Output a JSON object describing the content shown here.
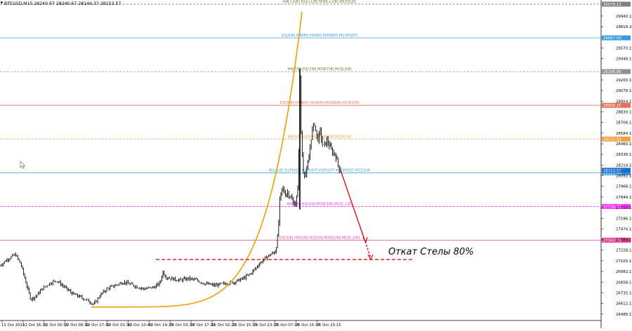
{
  "header": {
    "symbol_line": "BTCUSD,M15  28240.67 28240.67 28146.37 28153.57"
  },
  "annotation": {
    "text": "Откат Стелы 80%"
  },
  "colors": {
    "background": "#ffffff",
    "candles": "#000000",
    "grid": "#d9d9d9",
    "curve": "#f2a000",
    "arrow": "#e01010",
    "dashed_target": "#e01010",
    "current_price_tag": "#1a6fd0"
  },
  "chart_data": {
    "type": "candlestick",
    "instrument": "BTCUSD",
    "timeframe": "M15",
    "ohlc_last": {
      "open": 28240.67,
      "high": 28240.67,
      "low": 28146.37,
      "close": 28153.57
    },
    "x_tick_labels": [
      "11 Oct 2023",
      "11 Oct 16:15",
      "12 Oct 00:15",
      "12 Oct 08:30",
      "12 Oct 17:30",
      "13 Oct 01:30",
      "13 Oct 10:45",
      "13 Oct 19:15",
      "14 Oct 03:15",
      "14 Oct 17:30",
      "15 Oct 02:15",
      "15 Oct 15:15",
      "15 Oct 23:15",
      "16 Oct 07:15",
      "16 Oct 15:15",
      "16 Oct 23:15"
    ],
    "y_tick_labels": [
      "29940.15",
      "29816.20",
      "29570.15",
      "29448.15",
      "29200.15",
      "29078.15",
      "28954.15",
      "28830.15",
      "28708.15",
      "28584.15",
      "28460.15",
      "28338.15",
      "28214.15",
      "28092.15",
      "27968.15",
      "27844.15",
      "27720.15",
      "27596.15",
      "27474.15",
      "27350.15",
      "27228.15",
      "27105.15",
      "26982.15",
      "26858.15",
      "26735.15",
      "26612.15",
      "26488.15"
    ],
    "ylim": [
      26430,
      30110
    ],
    "levels": [
      {
        "label": "H4[+1/8] H1[+1/8] M30[+1/8] M15[5/8]",
        "price": 30078.13,
        "price_label": "30078.13",
        "color": "#808080",
        "style": "dashed",
        "text_color": "#6b7a2a"
      },
      {
        "label": "D1[6/8] H4RES H1RES M30RES M15PIVOT",
        "price": 29687.5,
        "price_label": "29687.50",
        "color": "#3c9be0",
        "style": "solid",
        "text_color": "#3c9be0"
      },
      {
        "label": "H4[7/8] H1[7/8] M30[7/8] M15[3/8]",
        "price": 29296.88,
        "price_label": "29296.88",
        "color": "#909090",
        "style": "dashed",
        "text_color": "#6b7a2a"
      },
      {
        "label": "D1[5/8] H4[6/8] H1[6/8] M30[6/8] M15[2/8]",
        "price": 28906.25,
        "price_label": "28906.25",
        "color": "#e8705a",
        "style": "solid",
        "text_color": "#e8705a"
      },
      {
        "label": "H4[5/8] H1[5/8] M30[5/8] M15[1/8]",
        "price": 28515.63,
        "price_label": "28515.63",
        "color": "#f5a040",
        "style": "dashed",
        "text_color": "#f5a040"
      },
      {
        "label": "W1[5/8] D1PIVOT H4PIVOT H1PIVOT M30PIVOT M15SUP",
        "price": 28125.0,
        "price_label": "28125.00",
        "color": "#3c9be0",
        "style": "solid",
        "text_color": "#3c9be0"
      },
      {
        "label": "H4[3/8] H1[3/8] M30[3/8] M15[-1/8]",
        "price": 27734.38,
        "price_label": "27734.38",
        "color": "#ff33ff",
        "style": "dashed",
        "text_color": "#ff33ff"
      },
      {
        "label": "D1[3/8] H4[2/8] H1[2/8] M30[2/8] M15[-2/8]",
        "price": 27343.75,
        "price_label": "27343.75",
        "color": "#e0409a",
        "style": "solid",
        "text_color": "#e0409a"
      }
    ],
    "current_price": {
      "value": 28153.57,
      "label": "28153.57"
    },
    "target_level": {
      "price": 27120
    },
    "curve_shape": "parabolic",
    "arrow_from_price": 28153,
    "arrow_to_price": 27120,
    "grid": false
  }
}
